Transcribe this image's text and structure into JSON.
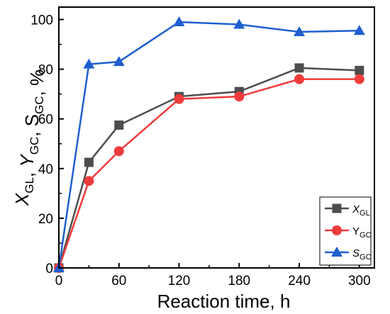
{
  "chart_data": {
    "type": "line",
    "xlabel": "Reaction time, h",
    "ylabel_parts": [
      {
        "main": "X",
        "sub": "GL",
        "italic": true
      },
      {
        "sep": ", "
      },
      {
        "main": "Y",
        "sub": "GC",
        "italic": true
      },
      {
        "sep": ", "
      },
      {
        "main": "S",
        "sub": "GC",
        "italic": false
      },
      {
        "sep": ", %"
      }
    ],
    "xlim": [
      0,
      315
    ],
    "ylim": [
      0,
      105
    ],
    "x_ticks": [
      "0",
      "60",
      "120",
      "180",
      "240",
      "300"
    ],
    "y_ticks": [
      "0",
      "20",
      "40",
      "60",
      "80",
      "100"
    ],
    "legend_position": "bottom-right",
    "series": [
      {
        "name_main": "X",
        "name_sub": "GL",
        "name_italic": true,
        "color": "#4d4d4d",
        "marker": "square",
        "x": [
          0,
          30,
          60,
          120,
          180,
          240,
          300
        ],
        "y": [
          0,
          42.5,
          57.5,
          69,
          71,
          80.5,
          79.5
        ]
      },
      {
        "name_main": "Y",
        "name_sub": "GC",
        "name_italic": false,
        "color": "#ef3b3b",
        "marker": "circle",
        "x": [
          0,
          30,
          60,
          120,
          180,
          240,
          300
        ],
        "y": [
          0,
          35,
          47,
          68,
          69,
          76,
          76
        ]
      },
      {
        "name_main": "S",
        "name_sub": "GC",
        "name_italic": true,
        "color": "#1f5fd0",
        "marker": "triangle",
        "x": [
          0,
          30,
          60,
          120,
          180,
          240,
          300
        ],
        "y": [
          0,
          82,
          83,
          99,
          98,
          95,
          95.5
        ]
      }
    ]
  }
}
